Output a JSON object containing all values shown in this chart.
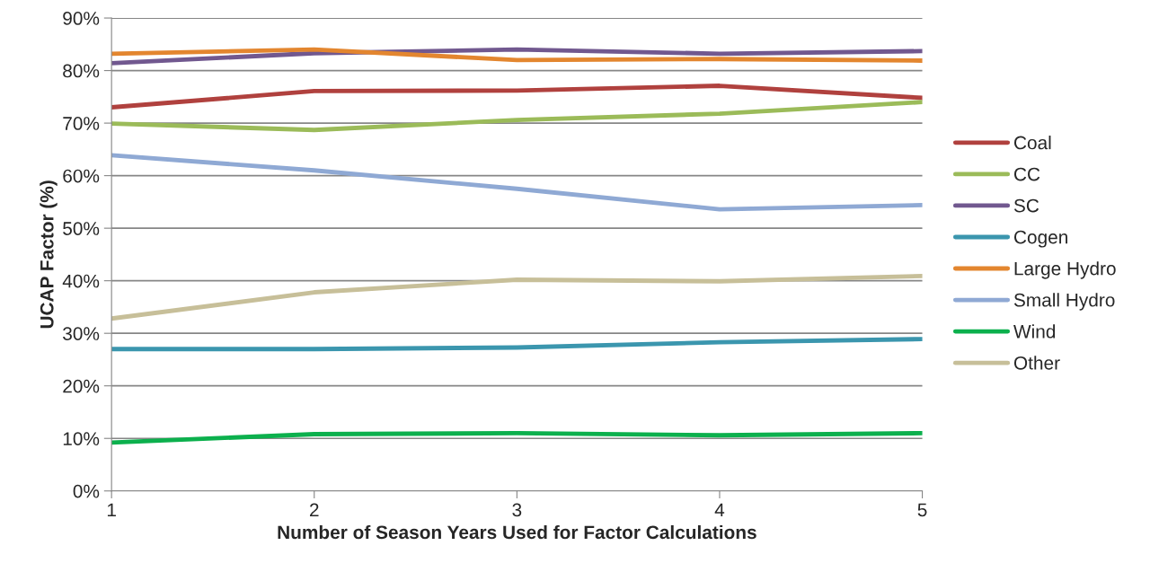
{
  "chart_data": {
    "type": "line",
    "xlabel": "Number of Season Years Used for Factor Calculations",
    "ylabel": "UCAP Factor (%)",
    "x": [
      1,
      2,
      3,
      4,
      5
    ],
    "series": [
      {
        "name": "Coal",
        "color": "#b0413e",
        "values": [
          73.0,
          76.1,
          76.2,
          77.1,
          74.8
        ]
      },
      {
        "name": "CC",
        "color": "#9bbb59",
        "values": [
          69.9,
          68.7,
          70.6,
          71.8,
          74.0
        ]
      },
      {
        "name": "SC",
        "color": "#71588f",
        "values": [
          81.4,
          83.3,
          84.0,
          83.2,
          83.7
        ]
      },
      {
        "name": "Cogen",
        "color": "#3b96ae",
        "values": [
          27.0,
          27.0,
          27.3,
          28.3,
          28.9
        ]
      },
      {
        "name": "Large Hydro",
        "color": "#e3862f",
        "values": [
          83.2,
          84.0,
          82.0,
          82.2,
          81.9
        ]
      },
      {
        "name": "Small Hydro",
        "color": "#8fa9d4",
        "values": [
          63.9,
          61.0,
          57.5,
          53.6,
          54.4
        ]
      },
      {
        "name": "Wind",
        "color": "#0cb04d",
        "values": [
          9.2,
          10.8,
          11.0,
          10.6,
          11.0
        ]
      },
      {
        "name": "Other",
        "color": "#c7bf99",
        "values": [
          32.8,
          37.8,
          40.2,
          39.9,
          40.9
        ]
      }
    ],
    "xlim": [
      1,
      5
    ],
    "xticks": [
      1,
      2,
      3,
      4,
      5
    ],
    "ylim": [
      0,
      90
    ],
    "yticks": [
      {
        "value": 0,
        "label": "0%"
      },
      {
        "value": 10,
        "label": "10%"
      },
      {
        "value": 20,
        "label": "20%"
      },
      {
        "value": 30,
        "label": "30%"
      },
      {
        "value": 40,
        "label": "40%"
      },
      {
        "value": 50,
        "label": "50%"
      },
      {
        "value": 60,
        "label": "60%"
      },
      {
        "value": 70,
        "label": "70%"
      },
      {
        "value": 80,
        "label": "80%"
      },
      {
        "value": 90,
        "label": "90%"
      }
    ],
    "grid": "y",
    "legend": "right",
    "marker": "none",
    "line_style": "solid"
  }
}
